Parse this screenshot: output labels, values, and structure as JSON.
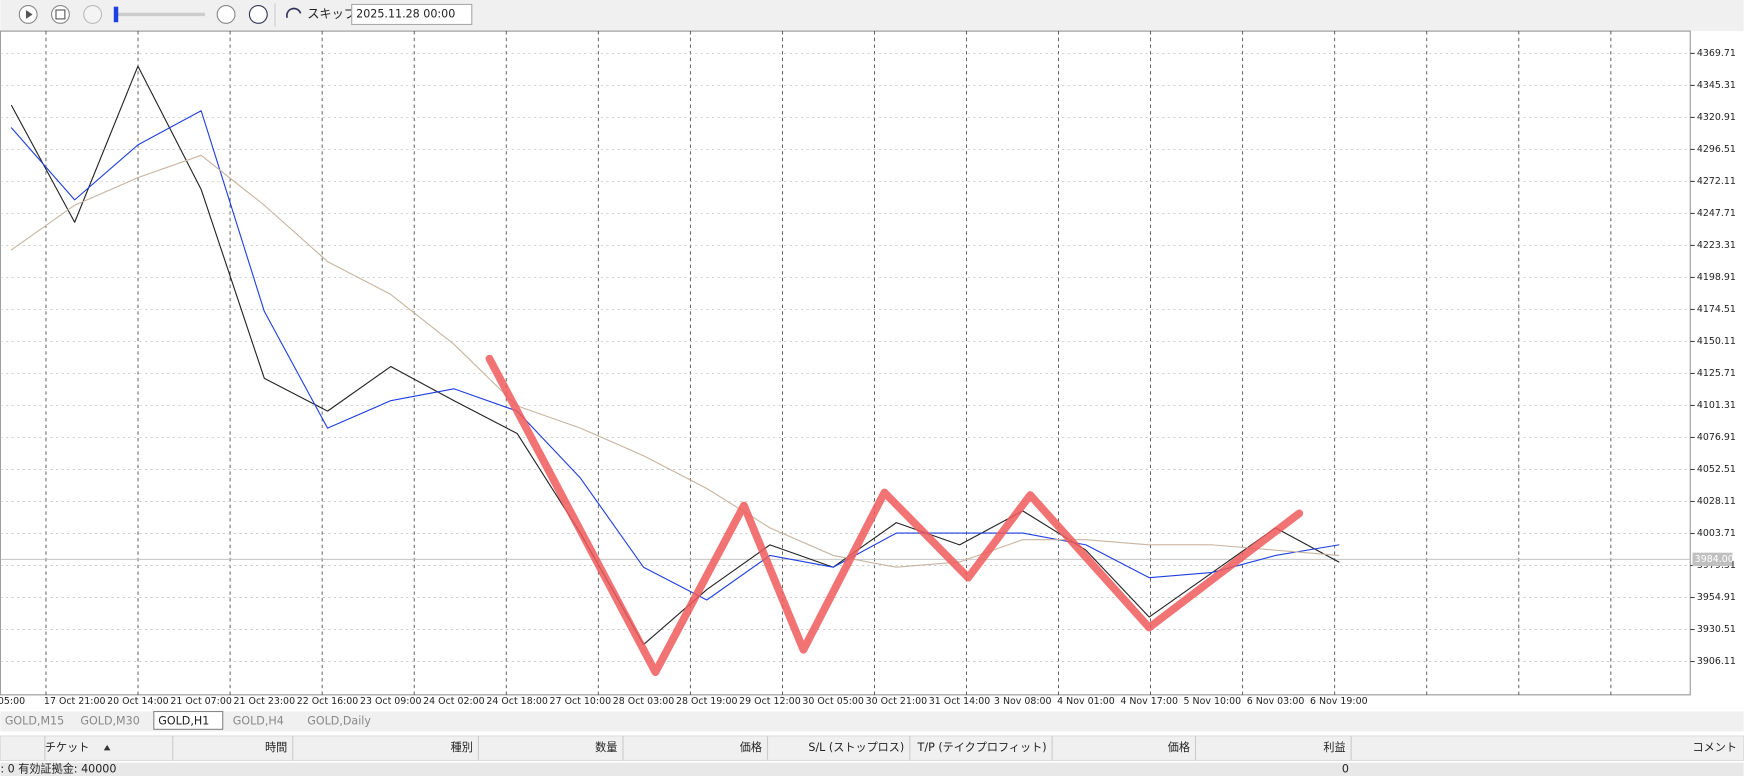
{
  "toolbar": {
    "skip_label": "スキップ",
    "date": "2025.11.28 00:00"
  },
  "chart_data": {
    "type": "line",
    "x": [
      "05:00",
      "17 Oct 21:00",
      "20 Oct 14:00",
      "21 Oct 07:00",
      "21 Oct 23:00",
      "22 Oct 16:00",
      "23 Oct 09:00",
      "24 Oct 02:00",
      "24 Oct 18:00",
      "27 Oct 10:00",
      "28 Oct 03:00",
      "28 Oct 19:00",
      "29 Oct 12:00",
      "30 Oct 05:00",
      "30 Oct 21:00",
      "31 Oct 14:00",
      "3 Nov 08:00",
      "4 Nov 01:00",
      "4 Nov 17:00",
      "5 Nov 10:00",
      "6 Nov 03:00",
      "6 Nov 19:00"
    ],
    "series": [
      {
        "color": "#222222",
        "values": [
          4330,
          4241,
          4360,
          4266,
          4122,
          4097,
          4131,
          4105,
          4080,
          4004,
          3919,
          3961,
          3995,
          3978,
          4012,
          3995,
          4021,
          3991,
          3940,
          3974,
          4008,
          3982
        ]
      },
      {
        "color": "#1f3fe0",
        "values": [
          4313,
          4258,
          4300,
          4326,
          4173,
          4084,
          4105,
          4114,
          4097,
          4046,
          3978,
          3953,
          3987,
          3978,
          4004,
          4004,
          4004,
          3995,
          3970,
          3974,
          3987,
          3995
        ]
      },
      {
        "color": "#c8b4a0",
        "values": [
          4220,
          4254,
          4275,
          4292,
          4254,
          4211,
          4186,
          4148,
          4101,
          4084,
          4063,
          4038,
          4008,
          3987,
          3978,
          3982,
          3999,
          3999,
          3995,
          3995,
          3991,
          3987
        ]
      },
      {
        "color": "#f05a5a",
        "x": [
          "24 Oct 11:00",
          "28 Oct 06:00",
          "29 Oct 05:00",
          "29 Oct 21:00",
          "30 Oct 18:00",
          "31 Oct 23:00",
          "3 Nov 10:00",
          "4 Nov 17:00",
          "6 Nov 09:00"
        ],
        "values": [
          4137,
          3898,
          4025,
          3915,
          4035,
          3970,
          4033,
          3932,
          4019
        ]
      }
    ],
    "ylim": [
      3880.7,
      4386.7
    ],
    "yticks": [
      4369.71,
      4345.31,
      4320.91,
      4296.51,
      4272.11,
      4247.71,
      4223.31,
      4198.91,
      4174.51,
      4150.11,
      4125.71,
      4101.31,
      4076.91,
      4052.51,
      4028.11,
      4003.71,
      3979.31,
      3954.91,
      3930.51,
      3906.11
    ],
    "grid": true,
    "current_price": {
      "value": 3984,
      "label": "3984.00"
    }
  },
  "tabs": [
    "GOLD,M15",
    "GOLD,M30",
    "GOLD,H1",
    "GOLD,H4",
    "GOLD,Daily"
  ],
  "active_tab": 2,
  "table_headers": [
    "チケット",
    "時間",
    "種別",
    "数量",
    "価格",
    "S/L (ストップロス)",
    "T/P (テイクプロフィット)",
    "価格",
    "利益",
    "コメント"
  ],
  "status": {
    "equity": ": 0 有効証拠金: 40000",
    "profit": "0"
  }
}
